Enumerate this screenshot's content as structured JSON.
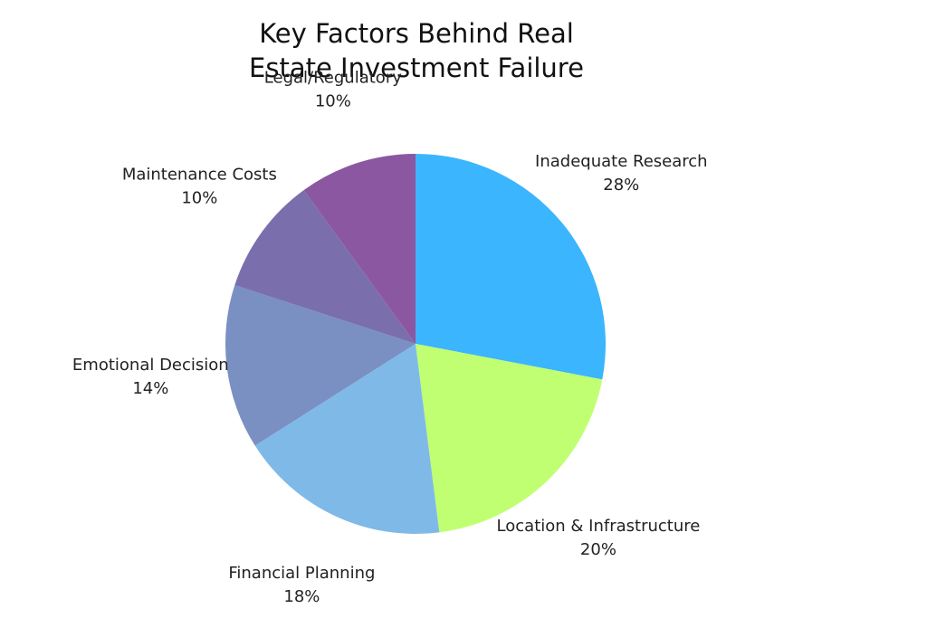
{
  "chart_data": {
    "type": "pie",
    "title": "Key Factors Behind Real Estate Investment Failure",
    "categories": [
      "Inadequate Research",
      "Location & Infrastructure",
      "Financial Planning",
      "Emotional Decision",
      "Maintenance Costs",
      "Legal/Regulatory"
    ],
    "values": [
      28,
      20,
      18,
      14,
      10,
      10
    ],
    "value_labels": [
      "28%",
      "20%",
      "18%",
      "14%",
      "10%",
      "10%"
    ],
    "colors": [
      "#3bb5fd",
      "#c1ff72",
      "#7fb9e8",
      "#7a8fc2",
      "#7a6fac",
      "#8c57a1"
    ]
  }
}
